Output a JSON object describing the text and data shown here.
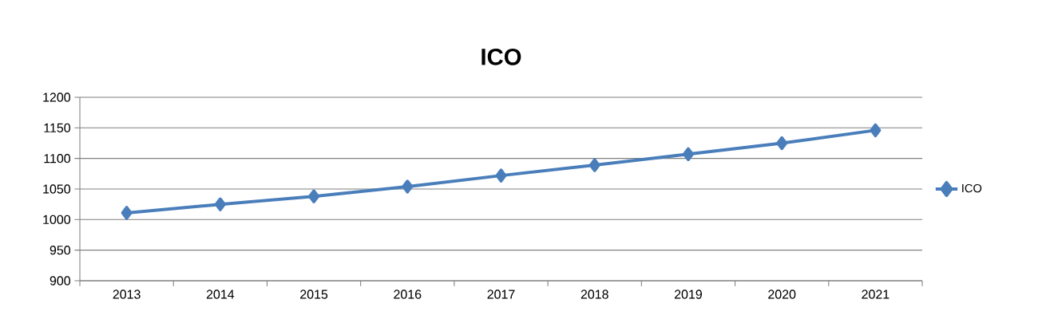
{
  "chart_data": {
    "type": "line",
    "title": "ICO",
    "categories": [
      "2013",
      "2014",
      "2015",
      "2016",
      "2017",
      "2018",
      "2019",
      "2020",
      "2021"
    ],
    "series": [
      {
        "name": "ICO",
        "color": "#4a7ebb",
        "values": [
          1011,
          1025,
          1038,
          1054,
          1072,
          1089,
          1107,
          1125,
          1146
        ]
      }
    ],
    "ylim": [
      900,
      1200
    ],
    "yticks": [
      900,
      950,
      1000,
      1050,
      1100,
      1150,
      1200
    ],
    "grid": "y",
    "legend": "right",
    "marker": "diamond",
    "line_style": "solid"
  }
}
